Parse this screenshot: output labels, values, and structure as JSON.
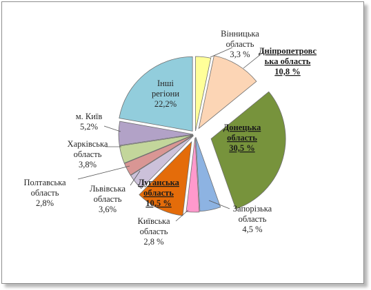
{
  "chart_data": {
    "type": "pie",
    "exploded": true,
    "legend": "none",
    "title": "",
    "slices": [
      {
        "label_lines": [
          "Вінницька",
          "область",
          "3,3 %"
        ],
        "value": 3.3,
        "color": "#ffff99",
        "emphasis": false
      },
      {
        "label_lines": [
          "Дніпропетровс",
          "ька область",
          "10,8 %"
        ],
        "value": 10.8,
        "color": "#fcd5b5",
        "emphasis": true
      },
      {
        "label_lines": [
          "Донецька",
          "область",
          "30,5 %"
        ],
        "value": 30.5,
        "color": "#77933c",
        "emphasis": true
      },
      {
        "label_lines": [
          "Запорізька",
          "область",
          "4,5 %"
        ],
        "value": 4.5,
        "color": "#8db3e2",
        "emphasis": false
      },
      {
        "label_lines": [
          "Київська",
          "область",
          "2,8 %"
        ],
        "value": 2.8,
        "color": "#ff99cc",
        "emphasis": false
      },
      {
        "label_lines": [
          "Луганська",
          "область",
          "10,5 %"
        ],
        "value": 10.5,
        "color": "#e46c0a",
        "emphasis": true
      },
      {
        "label_lines": [
          "Львівська",
          "область",
          "3,6%"
        ],
        "value": 3.6,
        "color": "#ccc1da",
        "emphasis": false
      },
      {
        "label_lines": [
          "Полтавська",
          "область",
          "2,8%"
        ],
        "value": 2.8,
        "color": "#d99694",
        "emphasis": false
      },
      {
        "label_lines": [
          "Харківська",
          "область",
          "3,8%"
        ],
        "value": 3.8,
        "color": "#c3d69b",
        "emphasis": false
      },
      {
        "label_lines": [
          "м. Київ",
          "5,2%"
        ],
        "value": 5.2,
        "color": "#b2a2c7",
        "emphasis": false
      },
      {
        "label_lines": [
          "Інші",
          "регіони",
          "22,2%"
        ],
        "value": 22.2,
        "color": "#92cddc",
        "emphasis": false
      }
    ]
  }
}
